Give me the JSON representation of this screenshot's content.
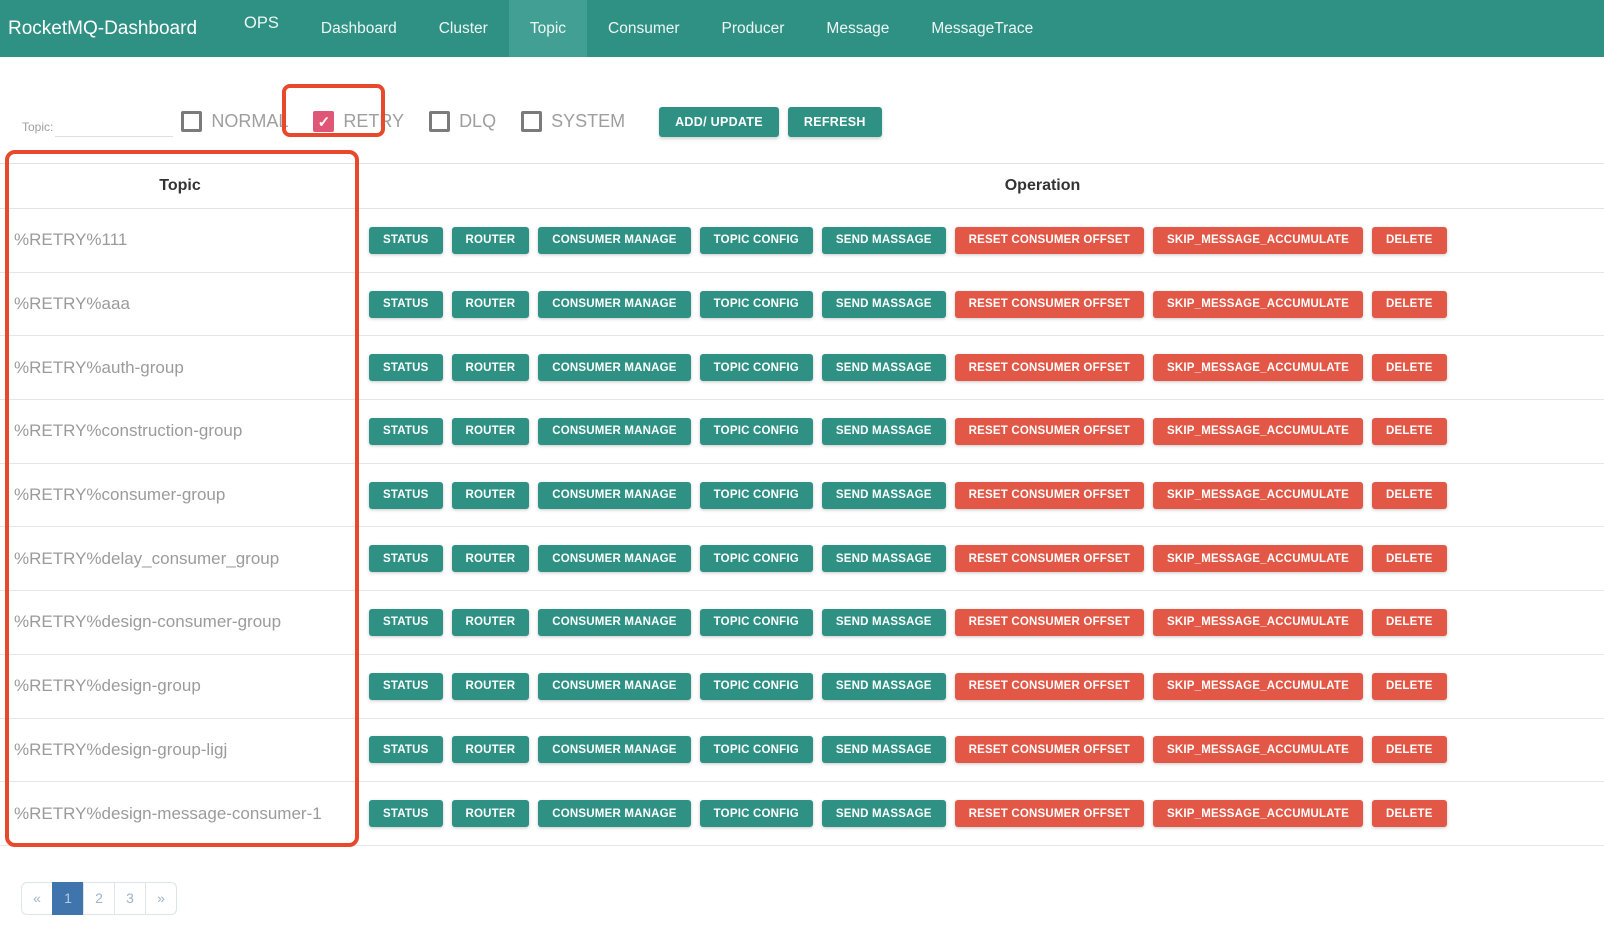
{
  "navbar": {
    "brand": "RocketMQ-Dashboard",
    "items": [
      {
        "label": "OPS",
        "active": false,
        "raised": true
      },
      {
        "label": "Dashboard",
        "active": false
      },
      {
        "label": "Cluster",
        "active": false
      },
      {
        "label": "Topic",
        "active": true
      },
      {
        "label": "Consumer",
        "active": false
      },
      {
        "label": "Producer",
        "active": false
      },
      {
        "label": "Message",
        "active": false
      },
      {
        "label": "MessageTrace",
        "active": false
      }
    ]
  },
  "filter": {
    "topic_label": "Topic:",
    "topic_input_value": "",
    "checkboxes": [
      {
        "label": "NORMAL",
        "checked": false
      },
      {
        "label": "RETRY",
        "checked": true,
        "annotated": true
      },
      {
        "label": "DLQ",
        "checked": false
      },
      {
        "label": "SYSTEM",
        "checked": false
      }
    ],
    "add_update_label": "ADD/ UPDATE",
    "refresh_label": "REFRESH"
  },
  "table": {
    "columns": [
      "Topic",
      "Operation"
    ],
    "row_actions": [
      "STATUS",
      "ROUTER",
      "CONSUMER MANAGE",
      "TOPIC CONFIG",
      "SEND MASSAGE",
      "RESET CONSUMER OFFSET",
      "SKIP_MESSAGE_ACCUMULATE",
      "DELETE"
    ],
    "danger_actions": [
      "RESET CONSUMER OFFSET",
      "SKIP_MESSAGE_ACCUMULATE",
      "DELETE"
    ],
    "rows": [
      "%RETRY%111",
      "%RETRY%aaa",
      "%RETRY%auth-group",
      "%RETRY%construction-group",
      "%RETRY%consumer-group",
      "%RETRY%delay_consumer_group",
      "%RETRY%design-consumer-group",
      "%RETRY%design-group",
      "%RETRY%design-group-ligj",
      "%RETRY%design-message-consumer-1"
    ]
  },
  "pagination": {
    "items": [
      "«",
      "1",
      "2",
      "3",
      "»"
    ],
    "active": "1"
  },
  "icons": {
    "checkmark": "✓"
  },
  "colors": {
    "navbar_bg": "#2f9184",
    "navbar_active_bg": "#41a093",
    "accent_teal": "#2e9184",
    "danger_red": "#e25746",
    "checkbox_checked": "#e05677",
    "annotation": "#e8482b",
    "pagination_active_bg": "#3f74ad"
  }
}
